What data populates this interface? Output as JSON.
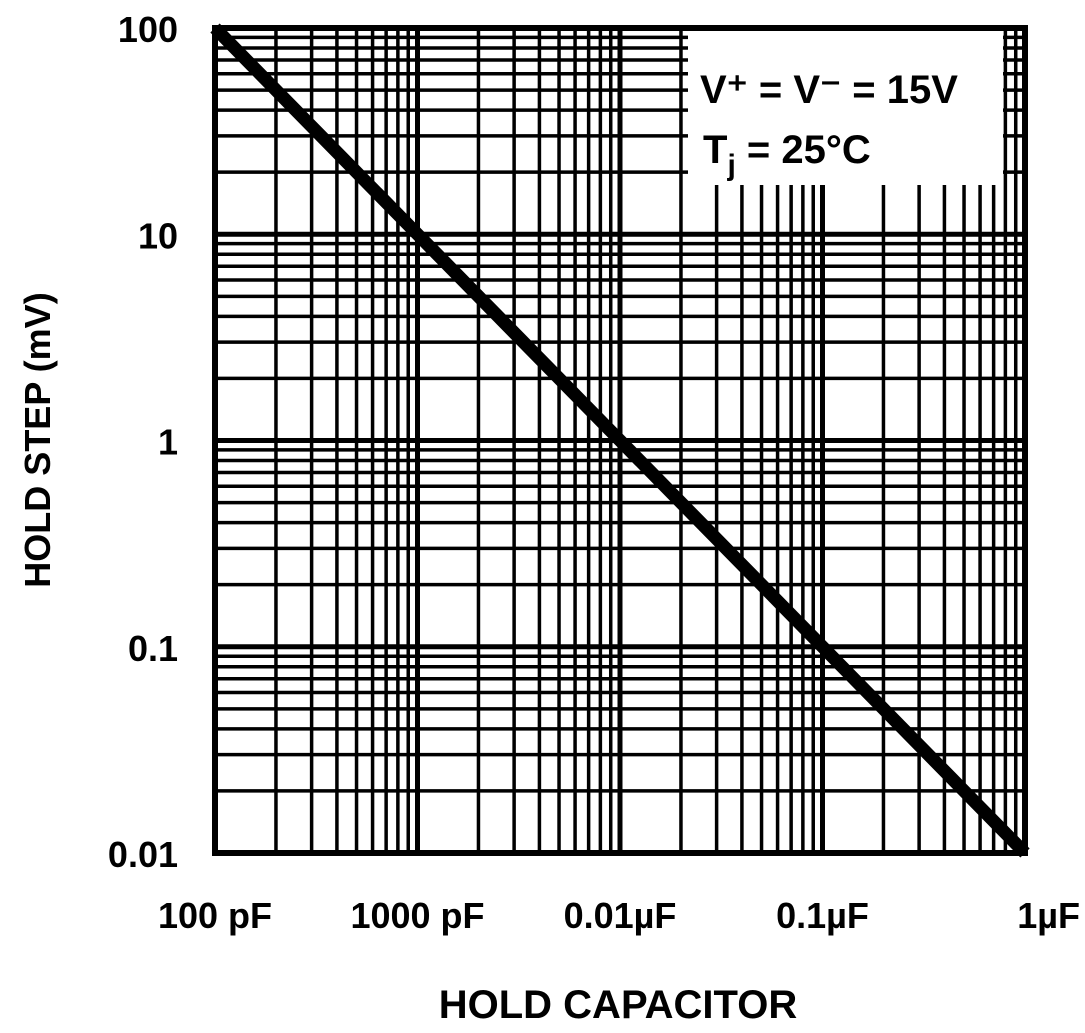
{
  "chart_data": {
    "type": "line",
    "xlabel": "HOLD CAPACITOR",
    "ylabel": "HOLD STEP (mV)",
    "x_scale": "log",
    "y_scale": "log",
    "xlim_farads": [
      1e-10,
      1e-06
    ],
    "ylim": [
      0.01,
      100
    ],
    "x_tick_values": [
      1e-10,
      1e-09,
      1e-08,
      1e-07,
      1e-06
    ],
    "x_tick_labels": [
      "100 pF",
      "1000 pF",
      "0.01µF",
      "0.1µF",
      "1µF"
    ],
    "y_tick_values": [
      100,
      10,
      1,
      0.1,
      0.01
    ],
    "y_tick_labels": [
      "100",
      "10",
      "1",
      "0.1",
      "0.01"
    ],
    "grid": true,
    "legend_placement": "top-right",
    "annotation": {
      "line1": "V⁺ = V⁻ = 15V",
      "line2_main": "T",
      "line2_sub": "j",
      "line2_rest": " = 25°C"
    },
    "series": [
      {
        "x": [
          1e-10,
          1e-09,
          1e-08,
          1e-07,
          1e-06
        ],
        "y": [
          100,
          10,
          1,
          0.1,
          0.01
        ],
        "color": "#000000"
      }
    ]
  }
}
